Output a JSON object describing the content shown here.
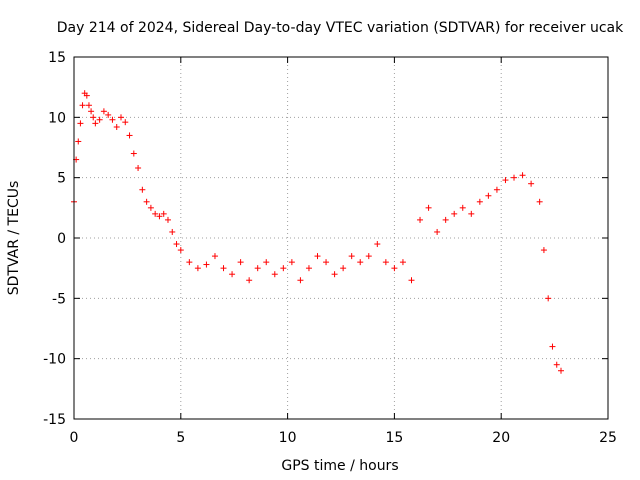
{
  "chart_data": {
    "type": "scatter",
    "title": "Day 214 of 2024, Sidereal Day-to-day VTEC variation (SDTVAR) for receiver ucak",
    "xlabel": "GPS time / hours",
    "ylabel": "SDTVAR / TECUs",
    "xlim": [
      0,
      25
    ],
    "ylim": [
      -15,
      15
    ],
    "xticks": [
      0,
      5,
      10,
      15,
      20,
      25
    ],
    "yticks": [
      -15,
      -10,
      -5,
      0,
      5,
      10,
      15
    ],
    "grid": true,
    "marker": "+",
    "color": "#ff0000",
    "series": [
      {
        "name": "SDTVAR",
        "x": [
          0.0,
          0.1,
          0.2,
          0.3,
          0.4,
          0.5,
          0.6,
          0.7,
          0.8,
          0.9,
          1.0,
          1.2,
          1.4,
          1.6,
          1.8,
          2.0,
          2.2,
          2.4,
          2.6,
          2.8,
          3.0,
          3.2,
          3.4,
          3.6,
          3.8,
          4.0,
          4.2,
          4.4,
          4.6,
          4.8,
          5.0,
          5.4,
          5.8,
          6.2,
          6.6,
          7.0,
          7.4,
          7.8,
          8.2,
          8.6,
          9.0,
          9.4,
          9.8,
          10.2,
          10.6,
          11.0,
          11.4,
          11.8,
          12.2,
          12.6,
          13.0,
          13.4,
          13.8,
          14.2,
          14.6,
          15.0,
          15.4,
          15.8,
          16.2,
          16.6,
          17.0,
          17.4,
          17.8,
          18.2,
          18.6,
          19.0,
          19.4,
          19.8,
          20.2,
          20.6,
          21.0,
          21.4,
          21.8,
          22.0,
          22.2,
          22.4,
          22.6,
          22.8
        ],
        "y": [
          3.0,
          6.5,
          8.0,
          9.5,
          11.0,
          12.0,
          11.8,
          11.0,
          10.5,
          10.0,
          9.5,
          9.8,
          10.5,
          10.2,
          9.8,
          9.2,
          10.0,
          9.6,
          8.5,
          7.0,
          5.8,
          4.0,
          3.0,
          2.5,
          2.0,
          1.8,
          2.0,
          1.5,
          0.5,
          -0.5,
          -1.0,
          -2.0,
          -2.5,
          -2.2,
          -1.5,
          -2.5,
          -3.0,
          -2.0,
          -3.5,
          -2.5,
          -2.0,
          -3.0,
          -2.5,
          -2.0,
          -3.5,
          -2.5,
          -1.5,
          -2.0,
          -3.0,
          -2.5,
          -1.5,
          -2.0,
          -1.5,
          -0.5,
          -2.0,
          -2.5,
          -2.0,
          -3.5,
          1.5,
          2.5,
          0.5,
          1.5,
          2.0,
          2.5,
          2.0,
          3.0,
          3.5,
          4.0,
          4.8,
          5.0,
          5.2,
          4.5,
          3.0,
          -1.0,
          -5.0,
          -9.0,
          -10.5,
          -11.0
        ]
      }
    ]
  }
}
